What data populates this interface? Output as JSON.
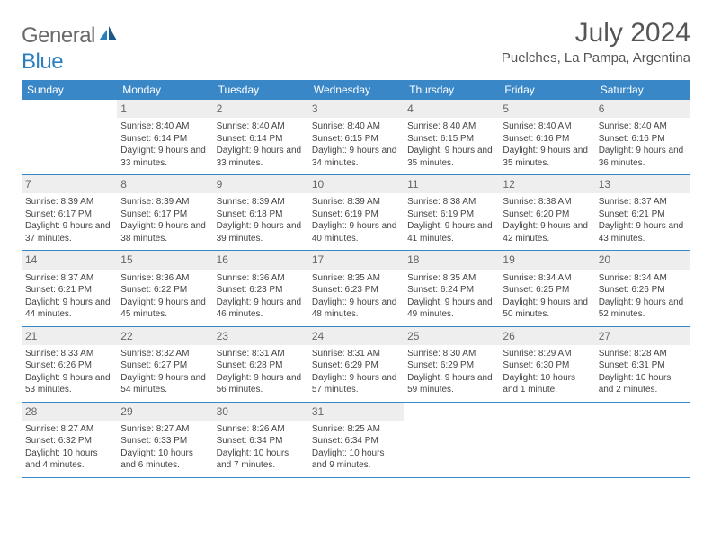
{
  "brand": {
    "part1": "General",
    "part2": "Blue"
  },
  "title": "July 2024",
  "location": "Puelches, La Pampa, Argentina",
  "colors": {
    "header_bg": "#3a87c8",
    "header_text": "#ffffff",
    "daynum_bg": "#eeeeee",
    "rule": "#3a87c8",
    "logo_gray": "#6a6a6a",
    "logo_blue": "#2a7fbf"
  },
  "weekdays": [
    "Sunday",
    "Monday",
    "Tuesday",
    "Wednesday",
    "Thursday",
    "Friday",
    "Saturday"
  ],
  "weeks": [
    [
      null,
      {
        "n": "1",
        "sr": "Sunrise: 8:40 AM",
        "ss": "Sunset: 6:14 PM",
        "dl": "Daylight: 9 hours and 33 minutes."
      },
      {
        "n": "2",
        "sr": "Sunrise: 8:40 AM",
        "ss": "Sunset: 6:14 PM",
        "dl": "Daylight: 9 hours and 33 minutes."
      },
      {
        "n": "3",
        "sr": "Sunrise: 8:40 AM",
        "ss": "Sunset: 6:15 PM",
        "dl": "Daylight: 9 hours and 34 minutes."
      },
      {
        "n": "4",
        "sr": "Sunrise: 8:40 AM",
        "ss": "Sunset: 6:15 PM",
        "dl": "Daylight: 9 hours and 35 minutes."
      },
      {
        "n": "5",
        "sr": "Sunrise: 8:40 AM",
        "ss": "Sunset: 6:16 PM",
        "dl": "Daylight: 9 hours and 35 minutes."
      },
      {
        "n": "6",
        "sr": "Sunrise: 8:40 AM",
        "ss": "Sunset: 6:16 PM",
        "dl": "Daylight: 9 hours and 36 minutes."
      }
    ],
    [
      {
        "n": "7",
        "sr": "Sunrise: 8:39 AM",
        "ss": "Sunset: 6:17 PM",
        "dl": "Daylight: 9 hours and 37 minutes."
      },
      {
        "n": "8",
        "sr": "Sunrise: 8:39 AM",
        "ss": "Sunset: 6:17 PM",
        "dl": "Daylight: 9 hours and 38 minutes."
      },
      {
        "n": "9",
        "sr": "Sunrise: 8:39 AM",
        "ss": "Sunset: 6:18 PM",
        "dl": "Daylight: 9 hours and 39 minutes."
      },
      {
        "n": "10",
        "sr": "Sunrise: 8:39 AM",
        "ss": "Sunset: 6:19 PM",
        "dl": "Daylight: 9 hours and 40 minutes."
      },
      {
        "n": "11",
        "sr": "Sunrise: 8:38 AM",
        "ss": "Sunset: 6:19 PM",
        "dl": "Daylight: 9 hours and 41 minutes."
      },
      {
        "n": "12",
        "sr": "Sunrise: 8:38 AM",
        "ss": "Sunset: 6:20 PM",
        "dl": "Daylight: 9 hours and 42 minutes."
      },
      {
        "n": "13",
        "sr": "Sunrise: 8:37 AM",
        "ss": "Sunset: 6:21 PM",
        "dl": "Daylight: 9 hours and 43 minutes."
      }
    ],
    [
      {
        "n": "14",
        "sr": "Sunrise: 8:37 AM",
        "ss": "Sunset: 6:21 PM",
        "dl": "Daylight: 9 hours and 44 minutes."
      },
      {
        "n": "15",
        "sr": "Sunrise: 8:36 AM",
        "ss": "Sunset: 6:22 PM",
        "dl": "Daylight: 9 hours and 45 minutes."
      },
      {
        "n": "16",
        "sr": "Sunrise: 8:36 AM",
        "ss": "Sunset: 6:23 PM",
        "dl": "Daylight: 9 hours and 46 minutes."
      },
      {
        "n": "17",
        "sr": "Sunrise: 8:35 AM",
        "ss": "Sunset: 6:23 PM",
        "dl": "Daylight: 9 hours and 48 minutes."
      },
      {
        "n": "18",
        "sr": "Sunrise: 8:35 AM",
        "ss": "Sunset: 6:24 PM",
        "dl": "Daylight: 9 hours and 49 minutes."
      },
      {
        "n": "19",
        "sr": "Sunrise: 8:34 AM",
        "ss": "Sunset: 6:25 PM",
        "dl": "Daylight: 9 hours and 50 minutes."
      },
      {
        "n": "20",
        "sr": "Sunrise: 8:34 AM",
        "ss": "Sunset: 6:26 PM",
        "dl": "Daylight: 9 hours and 52 minutes."
      }
    ],
    [
      {
        "n": "21",
        "sr": "Sunrise: 8:33 AM",
        "ss": "Sunset: 6:26 PM",
        "dl": "Daylight: 9 hours and 53 minutes."
      },
      {
        "n": "22",
        "sr": "Sunrise: 8:32 AM",
        "ss": "Sunset: 6:27 PM",
        "dl": "Daylight: 9 hours and 54 minutes."
      },
      {
        "n": "23",
        "sr": "Sunrise: 8:31 AM",
        "ss": "Sunset: 6:28 PM",
        "dl": "Daylight: 9 hours and 56 minutes."
      },
      {
        "n": "24",
        "sr": "Sunrise: 8:31 AM",
        "ss": "Sunset: 6:29 PM",
        "dl": "Daylight: 9 hours and 57 minutes."
      },
      {
        "n": "25",
        "sr": "Sunrise: 8:30 AM",
        "ss": "Sunset: 6:29 PM",
        "dl": "Daylight: 9 hours and 59 minutes."
      },
      {
        "n": "26",
        "sr": "Sunrise: 8:29 AM",
        "ss": "Sunset: 6:30 PM",
        "dl": "Daylight: 10 hours and 1 minute."
      },
      {
        "n": "27",
        "sr": "Sunrise: 8:28 AM",
        "ss": "Sunset: 6:31 PM",
        "dl": "Daylight: 10 hours and 2 minutes."
      }
    ],
    [
      {
        "n": "28",
        "sr": "Sunrise: 8:27 AM",
        "ss": "Sunset: 6:32 PM",
        "dl": "Daylight: 10 hours and 4 minutes."
      },
      {
        "n": "29",
        "sr": "Sunrise: 8:27 AM",
        "ss": "Sunset: 6:33 PM",
        "dl": "Daylight: 10 hours and 6 minutes."
      },
      {
        "n": "30",
        "sr": "Sunrise: 8:26 AM",
        "ss": "Sunset: 6:34 PM",
        "dl": "Daylight: 10 hours and 7 minutes."
      },
      {
        "n": "31",
        "sr": "Sunrise: 8:25 AM",
        "ss": "Sunset: 6:34 PM",
        "dl": "Daylight: 10 hours and 9 minutes."
      },
      null,
      null,
      null
    ]
  ]
}
